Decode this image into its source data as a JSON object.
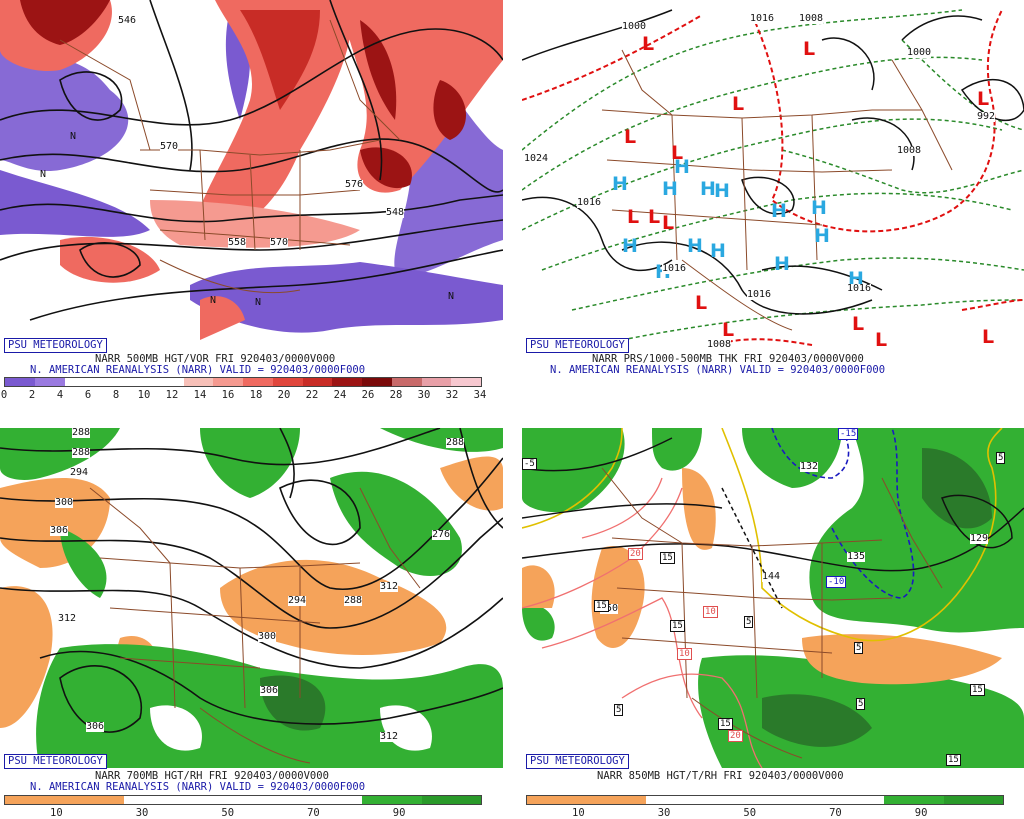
{
  "panels": {
    "p1": {
      "badge": "PSU METEOROLOGY",
      "title": "NARR 500MB HGT/VOR FRI 920403/0000V000",
      "subtitle": "N. AMERICAN REANALYSIS (NARR) VALID = 920403/0000F000",
      "colorbar": {
        "colors": [
          "#7a5ad0",
          "#9a7ae0",
          "#ffffff",
          "#ffffff",
          "#ffffff",
          "#ffffff",
          "#f7c0b8",
          "#f59a90",
          "#ef6a60",
          "#e0463c",
          "#c82c26",
          "#9c1414",
          "#7a0a0a",
          "#c86a6a",
          "#e8a0a8",
          "#f7c8d0"
        ],
        "ticks": [
          "0",
          "2",
          "4",
          "6",
          "8",
          "10",
          "12",
          "14",
          "16",
          "18",
          "20",
          "22",
          "24",
          "26",
          "28",
          "30",
          "32",
          "34"
        ]
      },
      "labels": [
        "546",
        "570",
        "576",
        "558",
        "570",
        "548",
        "N",
        "N",
        "N",
        "N",
        "N"
      ]
    },
    "p2": {
      "badge": "PSU METEOROLOGY",
      "title": "NARR PRS/1000-500MB THK FRI 920403/0000V000",
      "subtitle": "N. AMERICAN REANALYSIS (NARR) VALID = 920403/0000F000",
      "labels": [
        "1016",
        "1008",
        "1000",
        "1000",
        "1024",
        "1016",
        "992",
        "1008",
        "1016",
        "1016",
        "1008",
        "1016"
      ],
      "highs": 14,
      "lows": 14
    },
    "p3": {
      "badge": "PSU METEOROLOGY",
      "title": "NARR 700MB HGT/RH FRI 920403/0000V000",
      "subtitle": "N. AMERICAN REANALYSIS (NARR) VALID = 920403/0000F000",
      "colorbar": {
        "colors": [
          "#f5a35a",
          "#f5a35a",
          "#ffffff",
          "#ffffff",
          "#ffffff",
          "#ffffff",
          "#33b033",
          "#2a9a2a"
        ],
        "ticks": [
          "10",
          "30",
          "50",
          "70",
          "90"
        ]
      },
      "labels": [
        "288",
        "288",
        "294",
        "300",
        "306",
        "312",
        "306",
        "312",
        "300",
        "294",
        "288",
        "276",
        "312",
        "288"
      ]
    },
    "p4": {
      "badge": "PSU METEOROLOGY",
      "title": "NARR 850MB HGT/T/RH FRI 920403/0000V000",
      "colorbar": {
        "colors": [
          "#f5a35a",
          "#f5a35a",
          "#ffffff",
          "#ffffff",
          "#ffffff",
          "#ffffff",
          "#33b033",
          "#2a9a2a"
        ],
        "ticks": [
          "10",
          "30",
          "50",
          "70",
          "90"
        ]
      },
      "labels": [
        "150",
        "144",
        "135",
        "129",
        "132",
        "-15",
        "-10",
        "-5",
        "5",
        "10",
        "10",
        "15",
        "15",
        "15",
        "20",
        "20",
        "5",
        "5",
        "5",
        "15",
        "15",
        "5",
        "15"
      ]
    }
  },
  "colors": {
    "badge_blue": "#1a1aa8",
    "state_lines": "#8b4a2a",
    "contour": "#111111",
    "high_blue": "#2aa8e0",
    "low_red": "#e01010",
    "thk_red": "#e01010",
    "thk_green": "#2a8a2a",
    "rh_green": "#33b033",
    "rh_orange": "#f5a35a"
  }
}
